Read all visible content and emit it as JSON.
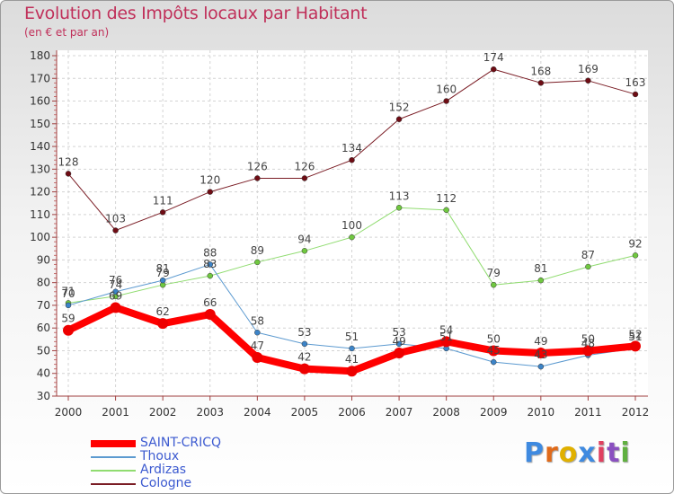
{
  "title": "Evolution des Impôts locaux par Habitant",
  "subtitle": "(en € et par an)",
  "logo": {
    "text": "Proxiti",
    "letter_colors": [
      "#3f8ae0",
      "#e06a1a",
      "#e0b000",
      "#3f8ae0",
      "#e04060",
      "#8a50c0",
      "#60b040"
    ]
  },
  "chart_data": {
    "type": "line",
    "x": [
      "2000",
      "2001",
      "2002",
      "2003",
      "2004",
      "2005",
      "2006",
      "2007",
      "2008",
      "2009",
      "2010",
      "2011",
      "2012"
    ],
    "ylim": [
      30,
      180
    ],
    "yticks": [
      30,
      40,
      50,
      60,
      70,
      80,
      90,
      100,
      110,
      120,
      130,
      140,
      150,
      160,
      170,
      180
    ],
    "grid": true,
    "legend": "bottom-left",
    "series": [
      {
        "name": "Cologne",
        "color": "#7a1c24",
        "marker_color": "#6e0c14",
        "line_width": 1,
        "values": [
          128,
          103,
          111,
          120,
          126,
          126,
          134,
          152,
          160,
          174,
          168,
          169,
          163
        ]
      },
      {
        "name": "Ardizas",
        "color": "#90dc70",
        "marker_color": "#70c840",
        "line_width": 1,
        "values": [
          71,
          74,
          79,
          83,
          89,
          94,
          100,
          113,
          112,
          79,
          81,
          87,
          92
        ]
      },
      {
        "name": "Thoux",
        "color": "#5c9ad0",
        "marker_color": "#3c84c8",
        "line_width": 1,
        "values": [
          70,
          76,
          81,
          88,
          58,
          53,
          51,
          53,
          51,
          45,
          43,
          48,
          51
        ]
      },
      {
        "name": "SAINT-CRICQ",
        "color": "#ff0000",
        "marker_color": "#ee0000",
        "line_width": 8,
        "values": [
          59,
          69,
          62,
          66,
          47,
          42,
          41,
          49,
          54,
          50,
          49,
          50,
          52
        ]
      }
    ]
  }
}
